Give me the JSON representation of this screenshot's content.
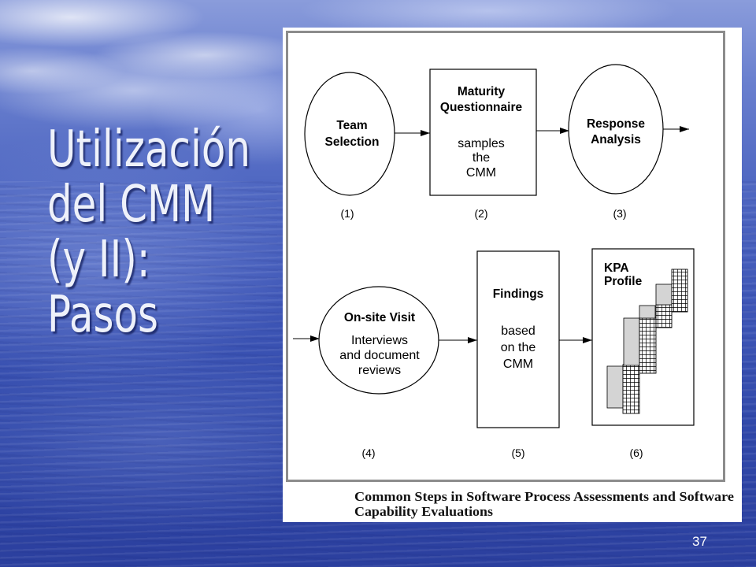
{
  "slide": {
    "title_lines": [
      "Utilización",
      "del CMM",
      "(y II):",
      "Pasos"
    ],
    "page_number": "37"
  },
  "colors": {
    "title_text": "#eef1fa",
    "slide_blue": "#3b52b4",
    "panel_background": "#ffffff",
    "frame_gray": "#8c8c8c",
    "profile_shading": "#d4d4d4"
  },
  "diagram": {
    "steps": [
      {
        "label": "(1)",
        "heading": [
          "Team",
          "Selection"
        ]
      },
      {
        "label": "(2)",
        "heading": [
          "Maturity",
          "Questionnaire"
        ],
        "body": [
          "samples",
          "the",
          "CMM"
        ]
      },
      {
        "label": "(3)",
        "heading": [
          "Response",
          "Analysis"
        ]
      },
      {
        "label": "(4)",
        "heading": [
          "On-site Visit"
        ],
        "body": [
          "Interviews",
          "and document",
          "reviews"
        ]
      },
      {
        "label": "(5)",
        "heading": [
          "Findings"
        ],
        "body": [
          "based",
          "on the",
          "CMM"
        ]
      },
      {
        "label": "(6)",
        "heading": [
          "KPA",
          "Profile"
        ]
      }
    ],
    "caption": [
      "Common Steps in Software Process Assessments and Software",
      "Capability Evaluations"
    ]
  }
}
